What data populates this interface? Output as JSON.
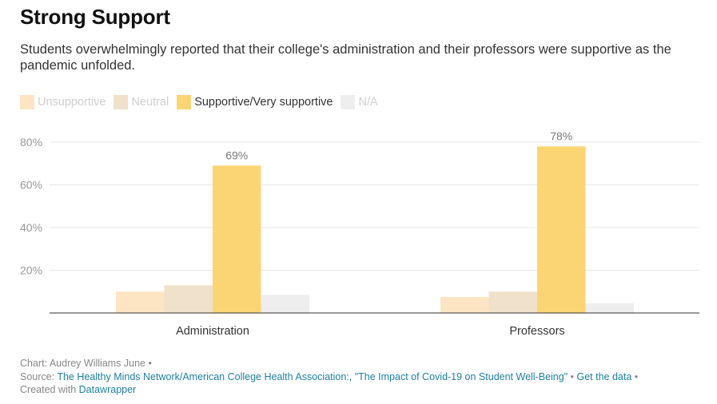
{
  "title": "Strong Support",
  "subtitle": "Students overwhelmingly reported that their college's administration and their professors were supportive as the pandemic unfolded.",
  "colors": {
    "unsupportive": "#fde5c4",
    "neutral": "#efe1ca",
    "supportive": "#fbd474",
    "na": "#eeeeee",
    "link": "#1d81a2"
  },
  "legend": [
    {
      "label": "Unsupportive",
      "color": "#fde5c4",
      "state": "dim"
    },
    {
      "label": "Neutral",
      "color": "#efe1ca",
      "state": "dim"
    },
    {
      "label": "Supportive/Very supportive",
      "color": "#fbd474",
      "state": "active"
    },
    {
      "label": "N/A",
      "color": "#eeeeee",
      "state": "dim"
    }
  ],
  "chart_data": {
    "type": "bar",
    "categories": [
      "Administration",
      "Professors"
    ],
    "series": [
      {
        "name": "Unsupportive",
        "values": [
          10,
          7.5
        ],
        "color": "#fde5c4"
      },
      {
        "name": "Neutral",
        "values": [
          13,
          10
        ],
        "color": "#efe1ca"
      },
      {
        "name": "Supportive/Very supportive",
        "values": [
          69,
          78
        ],
        "color": "#fbd474"
      },
      {
        "name": "N/A",
        "values": [
          8.5,
          4.5
        ],
        "color": "#eeeeee"
      }
    ],
    "data_labels": {
      "series": "Supportive/Very supportive",
      "texts": [
        "69%",
        "78%"
      ]
    },
    "ylim": [
      0,
      80
    ],
    "yticks": [
      20,
      40,
      60,
      80
    ],
    "ytick_labels": [
      "20%",
      "40%",
      "60%",
      "80%"
    ],
    "grid": true,
    "legend_position": "top-left"
  },
  "footer": {
    "chart_prefix": "Chart: ",
    "author": "Audrey Williams June",
    "bullet": " • ",
    "source_prefix": "Source: ",
    "source_link_1": "The Healthy Minds Network/American College Health Association:",
    "source_link_2": ", \"The Impact of Covid-19 on Student Well-Being\"",
    "get_data": "Get the data",
    "created_prefix": "Created with ",
    "datawrapper": "Datawrapper"
  }
}
